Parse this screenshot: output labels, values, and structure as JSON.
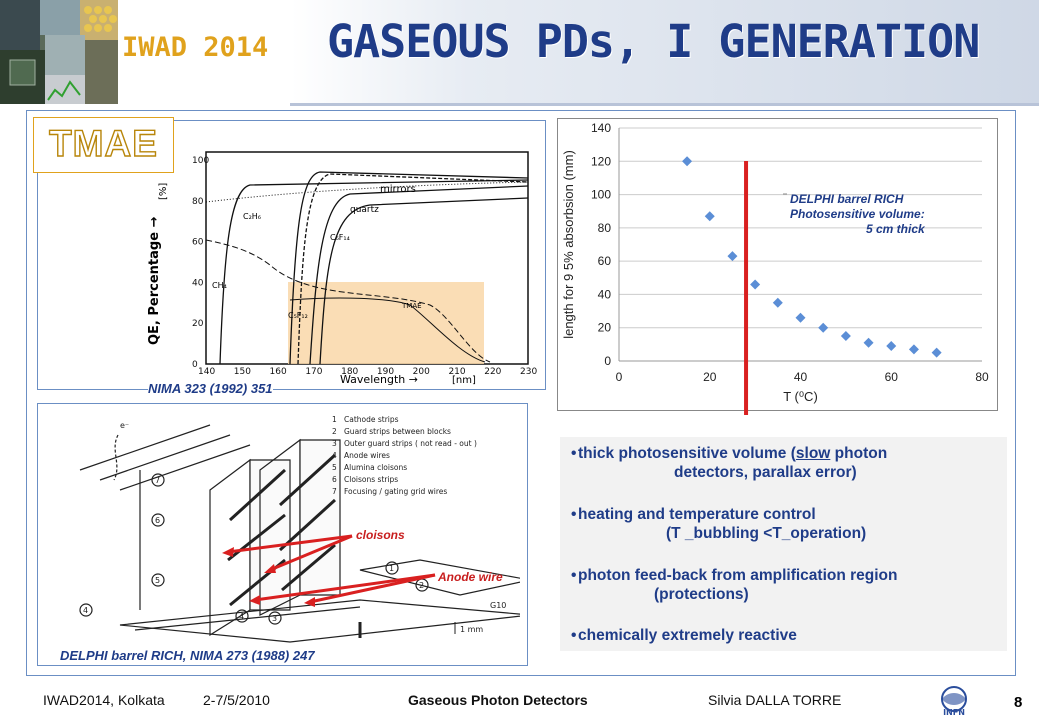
{
  "header": {
    "logo_text": "IWAD 2014",
    "title": "GASEOUS PDs, I GENERATION"
  },
  "left_panel": {
    "tmae_label": "TMAE",
    "qe_plot": {
      "y_axis_label": "QE, Percentage →",
      "y_unit": "[%]",
      "x_axis_label": "Wavelength →",
      "x_unit": "[nm]",
      "x_ticks": [
        "140",
        "150",
        "160",
        "170",
        "180",
        "190",
        "200",
        "210",
        "220",
        "230"
      ],
      "y_ticks": [
        "0",
        "20",
        "40",
        "60",
        "80",
        "100"
      ],
      "curve_labels": [
        "mirrors",
        "quartz",
        "C₅F₁₂",
        "C₆F₁₄",
        "CH₄",
        "C₂H₆",
        "TMAE"
      ]
    },
    "qe_reference": "NIMA  323 (1992) 351",
    "delphi_diagram": {
      "legend": [
        {
          "num": "1",
          "text": "Cathode strips"
        },
        {
          "num": "2",
          "text": "Guard strips between blocks"
        },
        {
          "num": "3",
          "text": "Outer guard strips ( not read - out )"
        },
        {
          "num": "4",
          "text": "Anode wires"
        },
        {
          "num": "5",
          "text": "Alumina cloisons"
        },
        {
          "num": "6",
          "text": "Cloisons strips"
        },
        {
          "num": "7",
          "text": "Focusing / gating grid wires"
        }
      ],
      "scale_label": "1 mm",
      "corner_label": "G10",
      "electron_label": "e⁻"
    },
    "cloisons_label": "cloisons",
    "anode_label": "Anode wire",
    "delphi_reference": "DELPHI barrel RICH, NIMA 273 (1988) 247"
  },
  "chart_data": {
    "type": "scatter",
    "title": "",
    "xlabel": "T (⁰C)",
    "ylabel": "length for 9 5% absorbsion (mm)",
    "xlim": [
      0,
      80
    ],
    "ylim": [
      0,
      140
    ],
    "x_ticks": [
      "0",
      "20",
      "40",
      "60",
      "80"
    ],
    "y_ticks": [
      "0",
      "20",
      "40",
      "60",
      "80",
      "100",
      "120",
      "140"
    ],
    "grid": true,
    "marker_color": "#5b8ed6",
    "series": [
      {
        "x": [
          15,
          20,
          25,
          30,
          35,
          40,
          45,
          50,
          55,
          60,
          65,
          70
        ],
        "values": [
          120,
          87,
          63,
          46,
          35,
          26,
          20,
          15,
          11,
          9,
          7,
          5
        ]
      }
    ],
    "vertical_line_x": 28,
    "vertical_line_color": "#d92020",
    "annotation": [
      "DELPHI barrel RICH",
      "Photosensitive volume:",
      "5 cm thick"
    ]
  },
  "bullets": [
    {
      "line1_pre": "thick photosensitive volume (",
      "line1_ul": "slow",
      "line1_post": " photon",
      "line2": "detectors, parallax error)"
    },
    {
      "line1_pre": "heating and temperature control",
      "line1_ul": "",
      "line1_post": "",
      "line2": "(T _bubbling <T_operation)"
    },
    {
      "line1_pre": "photon feed-back from amplification region",
      "line1_ul": "",
      "line1_post": "",
      "line2": "(protections)"
    },
    {
      "line1_pre": "chemically extremely reactive",
      "line1_ul": "",
      "line1_post": "",
      "line2": ""
    }
  ],
  "footer": {
    "conference": "IWAD2014, Kolkata",
    "dates": "2-7/5/2010",
    "talk_title": "Gaseous Photon Detectors",
    "author": "Silvia DALLA TORRE",
    "page": "8",
    "infn_logo_text": "INFN"
  }
}
